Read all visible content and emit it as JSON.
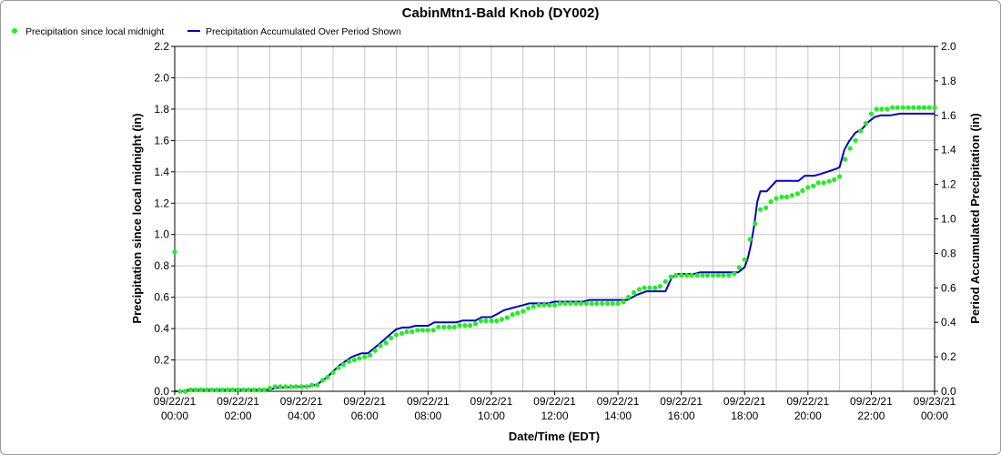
{
  "chart_data": {
    "type": "line",
    "title": "CabinMtn1-Bald Knob (DY002)",
    "xlabel": "Date/Time (EDT)",
    "ylabel_left": "Precipitation since local midnight (in)",
    "ylabel_right": "Period Accumulated Precipitation (in)",
    "ylim_left": [
      0,
      2.2
    ],
    "ylim_right": [
      0,
      2.0
    ],
    "yticks_left": [
      "0.0",
      "0.2",
      "0.4",
      "0.6",
      "0.8",
      "1.0",
      "1.2",
      "1.4",
      "1.6",
      "1.8",
      "2.0",
      "2.2"
    ],
    "yticks_right": [
      "0.0",
      "0.2",
      "0.4",
      "0.6",
      "0.8",
      "1.0",
      "1.2",
      "1.4",
      "1.6",
      "1.8",
      "2.0"
    ],
    "x_range_hours": [
      0,
      24
    ],
    "x_ticks": [
      {
        "date": "09/22/21",
        "time": "00:00"
      },
      {
        "date": "09/22/21",
        "time": "02:00"
      },
      {
        "date": "09/22/21",
        "time": "04:00"
      },
      {
        "date": "09/22/21",
        "time": "06:00"
      },
      {
        "date": "09/22/21",
        "time": "08:00"
      },
      {
        "date": "09/22/21",
        "time": "10:00"
      },
      {
        "date": "09/22/21",
        "time": "12:00"
      },
      {
        "date": "09/22/21",
        "time": "14:00"
      },
      {
        "date": "09/22/21",
        "time": "16:00"
      },
      {
        "date": "09/22/21",
        "time": "18:00"
      },
      {
        "date": "09/22/21",
        "time": "20:00"
      },
      {
        "date": "09/22/21",
        "time": "22:00"
      },
      {
        "date": "09/23/21",
        "time": "00:00"
      }
    ],
    "grid": true,
    "legend_position": "top-left",
    "series": [
      {
        "name": "Precipitation since local midnight",
        "axis": "left",
        "style": "points",
        "color": "#22ee22",
        "points": [
          [
            0.0,
            0.89
          ],
          [
            0.17,
            0.0
          ],
          [
            0.33,
            0.0
          ],
          [
            0.5,
            0.01
          ],
          [
            0.67,
            0.01
          ],
          [
            0.83,
            0.01
          ],
          [
            1.0,
            0.01
          ],
          [
            1.17,
            0.01
          ],
          [
            1.33,
            0.01
          ],
          [
            1.5,
            0.01
          ],
          [
            1.67,
            0.01
          ],
          [
            1.83,
            0.01
          ],
          [
            2.0,
            0.01
          ],
          [
            2.17,
            0.01
          ],
          [
            2.33,
            0.01
          ],
          [
            2.5,
            0.01
          ],
          [
            2.67,
            0.01
          ],
          [
            2.83,
            0.01
          ],
          [
            3.0,
            0.02
          ],
          [
            3.17,
            0.03
          ],
          [
            3.33,
            0.03
          ],
          [
            3.5,
            0.03
          ],
          [
            3.67,
            0.03
          ],
          [
            3.83,
            0.03
          ],
          [
            4.0,
            0.03
          ],
          [
            4.17,
            0.03
          ],
          [
            4.33,
            0.04
          ],
          [
            4.5,
            0.04
          ],
          [
            4.67,
            0.07
          ],
          [
            4.83,
            0.09
          ],
          [
            5.0,
            0.12
          ],
          [
            5.17,
            0.15
          ],
          [
            5.33,
            0.17
          ],
          [
            5.5,
            0.19
          ],
          [
            5.67,
            0.2
          ],
          [
            5.83,
            0.21
          ],
          [
            6.0,
            0.22
          ],
          [
            6.17,
            0.23
          ],
          [
            6.33,
            0.26
          ],
          [
            6.5,
            0.29
          ],
          [
            6.67,
            0.31
          ],
          [
            6.83,
            0.34
          ],
          [
            7.0,
            0.36
          ],
          [
            7.17,
            0.37
          ],
          [
            7.33,
            0.38
          ],
          [
            7.5,
            0.38
          ],
          [
            7.67,
            0.39
          ],
          [
            7.83,
            0.39
          ],
          [
            8.0,
            0.39
          ],
          [
            8.17,
            0.39
          ],
          [
            8.33,
            0.41
          ],
          [
            8.5,
            0.41
          ],
          [
            8.67,
            0.41
          ],
          [
            8.83,
            0.41
          ],
          [
            9.0,
            0.42
          ],
          [
            9.17,
            0.42
          ],
          [
            9.33,
            0.42
          ],
          [
            9.5,
            0.43
          ],
          [
            9.67,
            0.45
          ],
          [
            9.83,
            0.45
          ],
          [
            10.0,
            0.45
          ],
          [
            10.17,
            0.45
          ],
          [
            10.33,
            0.46
          ],
          [
            10.5,
            0.47
          ],
          [
            10.67,
            0.49
          ],
          [
            10.83,
            0.5
          ],
          [
            11.0,
            0.51
          ],
          [
            11.17,
            0.53
          ],
          [
            11.33,
            0.54
          ],
          [
            11.5,
            0.55
          ],
          [
            11.67,
            0.55
          ],
          [
            11.83,
            0.55
          ],
          [
            12.0,
            0.55
          ],
          [
            12.17,
            0.56
          ],
          [
            12.33,
            0.56
          ],
          [
            12.5,
            0.56
          ],
          [
            12.67,
            0.56
          ],
          [
            12.83,
            0.56
          ],
          [
            13.0,
            0.56
          ],
          [
            13.17,
            0.56
          ],
          [
            13.33,
            0.56
          ],
          [
            13.5,
            0.56
          ],
          [
            13.67,
            0.56
          ],
          [
            13.83,
            0.56
          ],
          [
            14.0,
            0.56
          ],
          [
            14.17,
            0.57
          ],
          [
            14.33,
            0.6
          ],
          [
            14.5,
            0.63
          ],
          [
            14.67,
            0.65
          ],
          [
            14.83,
            0.66
          ],
          [
            15.0,
            0.66
          ],
          [
            15.17,
            0.66
          ],
          [
            15.33,
            0.67
          ],
          [
            15.5,
            0.7
          ],
          [
            15.67,
            0.73
          ],
          [
            15.83,
            0.74
          ],
          [
            16.0,
            0.74
          ],
          [
            16.17,
            0.74
          ],
          [
            16.33,
            0.74
          ],
          [
            16.5,
            0.74
          ],
          [
            16.67,
            0.74
          ],
          [
            16.83,
            0.74
          ],
          [
            17.0,
            0.74
          ],
          [
            17.17,
            0.74
          ],
          [
            17.33,
            0.74
          ],
          [
            17.5,
            0.74
          ],
          [
            17.67,
            0.75
          ],
          [
            17.83,
            0.79
          ],
          [
            18.0,
            0.84
          ],
          [
            18.17,
            0.97
          ],
          [
            18.33,
            1.07
          ],
          [
            18.5,
            1.16
          ],
          [
            18.67,
            1.17
          ],
          [
            18.83,
            1.21
          ],
          [
            19.0,
            1.23
          ],
          [
            19.17,
            1.24
          ],
          [
            19.33,
            1.24
          ],
          [
            19.5,
            1.25
          ],
          [
            19.67,
            1.26
          ],
          [
            19.83,
            1.28
          ],
          [
            20.0,
            1.3
          ],
          [
            20.17,
            1.31
          ],
          [
            20.33,
            1.33
          ],
          [
            20.5,
            1.33
          ],
          [
            20.67,
            1.34
          ],
          [
            20.83,
            1.35
          ],
          [
            21.0,
            1.37
          ],
          [
            21.17,
            1.48
          ],
          [
            21.33,
            1.55
          ],
          [
            21.5,
            1.6
          ],
          [
            21.67,
            1.66
          ],
          [
            21.83,
            1.71
          ],
          [
            22.0,
            1.77
          ],
          [
            22.17,
            1.8
          ],
          [
            22.33,
            1.8
          ],
          [
            22.5,
            1.8
          ],
          [
            22.67,
            1.81
          ],
          [
            22.83,
            1.81
          ],
          [
            23.0,
            1.81
          ],
          [
            23.17,
            1.81
          ],
          [
            23.33,
            1.81
          ],
          [
            23.5,
            1.81
          ],
          [
            23.67,
            1.81
          ],
          [
            23.83,
            1.81
          ],
          [
            24.0,
            1.81
          ]
        ]
      },
      {
        "name": "Precipitation Accumulated Over Period Shown",
        "axis": "right",
        "style": "line",
        "color": "#0000cc",
        "points": [
          [
            0.0,
            0.0
          ],
          [
            0.25,
            0.0
          ],
          [
            0.45,
            0.01
          ],
          [
            3.0,
            0.01
          ],
          [
            3.2,
            0.02
          ],
          [
            4.3,
            0.03
          ],
          [
            4.5,
            0.04
          ],
          [
            4.8,
            0.08
          ],
          [
            5.2,
            0.15
          ],
          [
            5.6,
            0.2
          ],
          [
            5.9,
            0.22
          ],
          [
            6.1,
            0.22
          ],
          [
            6.5,
            0.28
          ],
          [
            6.8,
            0.33
          ],
          [
            7.0,
            0.36
          ],
          [
            7.2,
            0.37
          ],
          [
            7.4,
            0.37
          ],
          [
            7.6,
            0.38
          ],
          [
            8.0,
            0.38
          ],
          [
            8.2,
            0.4
          ],
          [
            8.9,
            0.4
          ],
          [
            9.1,
            0.41
          ],
          [
            9.5,
            0.41
          ],
          [
            9.7,
            0.43
          ],
          [
            10.0,
            0.43
          ],
          [
            10.2,
            0.45
          ],
          [
            10.4,
            0.47
          ],
          [
            10.6,
            0.48
          ],
          [
            11.0,
            0.5
          ],
          [
            11.2,
            0.51
          ],
          [
            11.8,
            0.51
          ],
          [
            12.0,
            0.52
          ],
          [
            12.9,
            0.52
          ],
          [
            13.1,
            0.53
          ],
          [
            14.3,
            0.53
          ],
          [
            14.6,
            0.56
          ],
          [
            14.9,
            0.58
          ],
          [
            15.5,
            0.58
          ],
          [
            15.7,
            0.66
          ],
          [
            15.9,
            0.68
          ],
          [
            16.4,
            0.68
          ],
          [
            16.6,
            0.69
          ],
          [
            17.8,
            0.69
          ],
          [
            18.0,
            0.72
          ],
          [
            18.1,
            0.77
          ],
          [
            18.2,
            0.85
          ],
          [
            18.3,
            0.96
          ],
          [
            18.4,
            1.1
          ],
          [
            18.5,
            1.16
          ],
          [
            18.7,
            1.16
          ],
          [
            18.9,
            1.2
          ],
          [
            19.0,
            1.22
          ],
          [
            19.3,
            1.22
          ],
          [
            19.7,
            1.22
          ],
          [
            19.9,
            1.25
          ],
          [
            20.2,
            1.25
          ],
          [
            20.4,
            1.26
          ],
          [
            20.9,
            1.29
          ],
          [
            21.0,
            1.3
          ],
          [
            21.15,
            1.4
          ],
          [
            21.3,
            1.45
          ],
          [
            21.5,
            1.5
          ],
          [
            21.7,
            1.52
          ],
          [
            21.9,
            1.56
          ],
          [
            22.1,
            1.59
          ],
          [
            22.3,
            1.6
          ],
          [
            22.6,
            1.6
          ],
          [
            22.9,
            1.61
          ],
          [
            24.0,
            1.61
          ]
        ]
      }
    ]
  }
}
